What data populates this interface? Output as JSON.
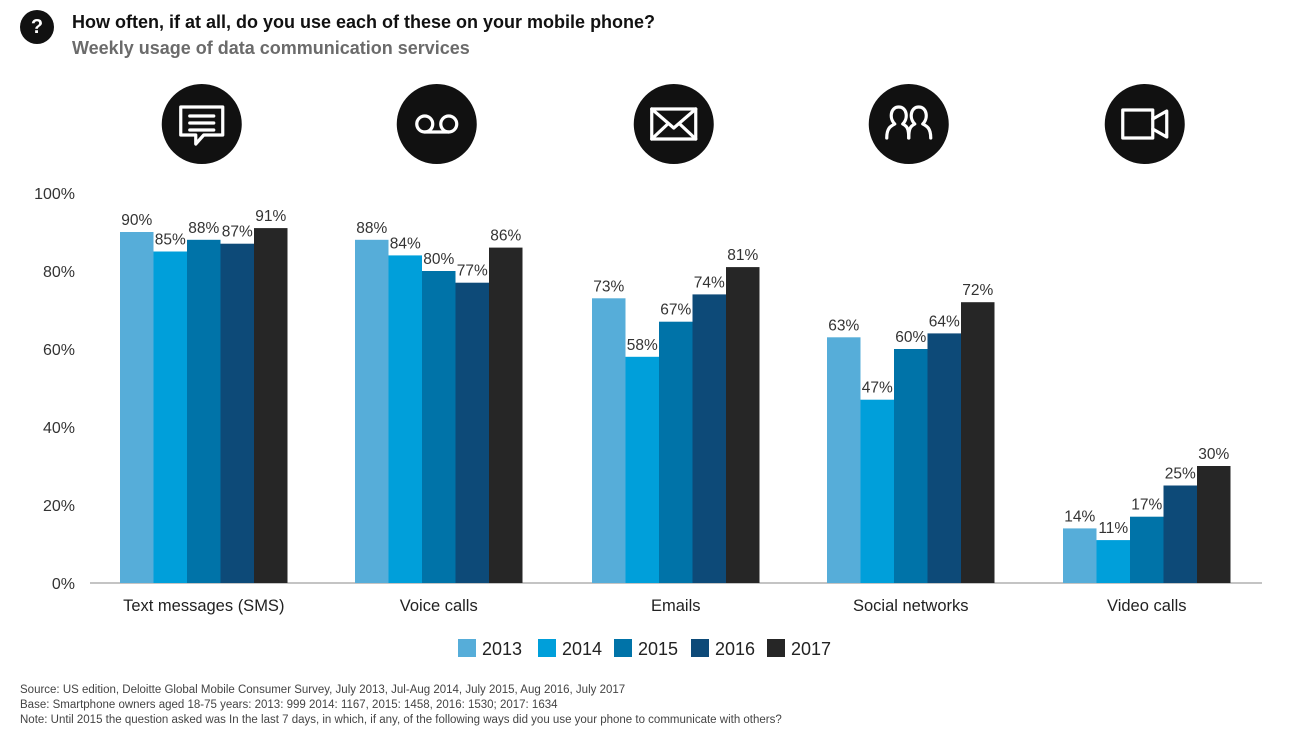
{
  "header": {
    "question_icon": "question-mark-icon",
    "question_glyph": "?",
    "title": "How often, if at all, do you use each of these on your mobile phone?",
    "subtitle": "Weekly usage of data communication services"
  },
  "chart_data": {
    "type": "bar",
    "categories": [
      "Text messages (SMS)",
      "Voice calls",
      "Emails",
      "Social networks",
      "Video calls"
    ],
    "category_icons": [
      "speech-bubble-icon",
      "voicemail-icon",
      "envelope-icon",
      "people-icon",
      "video-camera-icon"
    ],
    "series": [
      {
        "name": "2013",
        "color": "#56add9",
        "values": [
          90,
          88,
          73,
          63,
          14
        ]
      },
      {
        "name": "2014",
        "color": "#009fda",
        "values": [
          85,
          84,
          58,
          47,
          11
        ]
      },
      {
        "name": "2015",
        "color": "#0073a8",
        "values": [
          88,
          80,
          67,
          60,
          17
        ]
      },
      {
        "name": "2016",
        "color": "#0d4a78",
        "values": [
          87,
          77,
          74,
          64,
          25
        ]
      },
      {
        "name": "2017",
        "color": "#262626",
        "values": [
          91,
          86,
          81,
          72,
          30
        ]
      }
    ],
    "value_suffix": "%",
    "ylim": [
      0,
      100
    ],
    "yticks": [
      0,
      20,
      40,
      60,
      80,
      100
    ],
    "ytick_labels": [
      "0%",
      "20%",
      "40%",
      "60%",
      "80%",
      "100%"
    ],
    "xlabel": "",
    "ylabel": "",
    "grid": false,
    "legend_position": "bottom-center"
  },
  "footer": {
    "source": "Source: US edition, Deloitte Global Mobile Consumer Survey, July 2013, Jul-Aug 2014, July 2015, Aug 2016, July 2017",
    "base": "Base: Smartphone owners aged 18-75 years: 2013: 999 2014: 1167, 2015: 1458, 2016: 1530; 2017: 1634",
    "note": "Note: Until 2015 the question asked was In the last 7 days, in which, if any, of the following ways did you use your phone to communicate with others?"
  }
}
